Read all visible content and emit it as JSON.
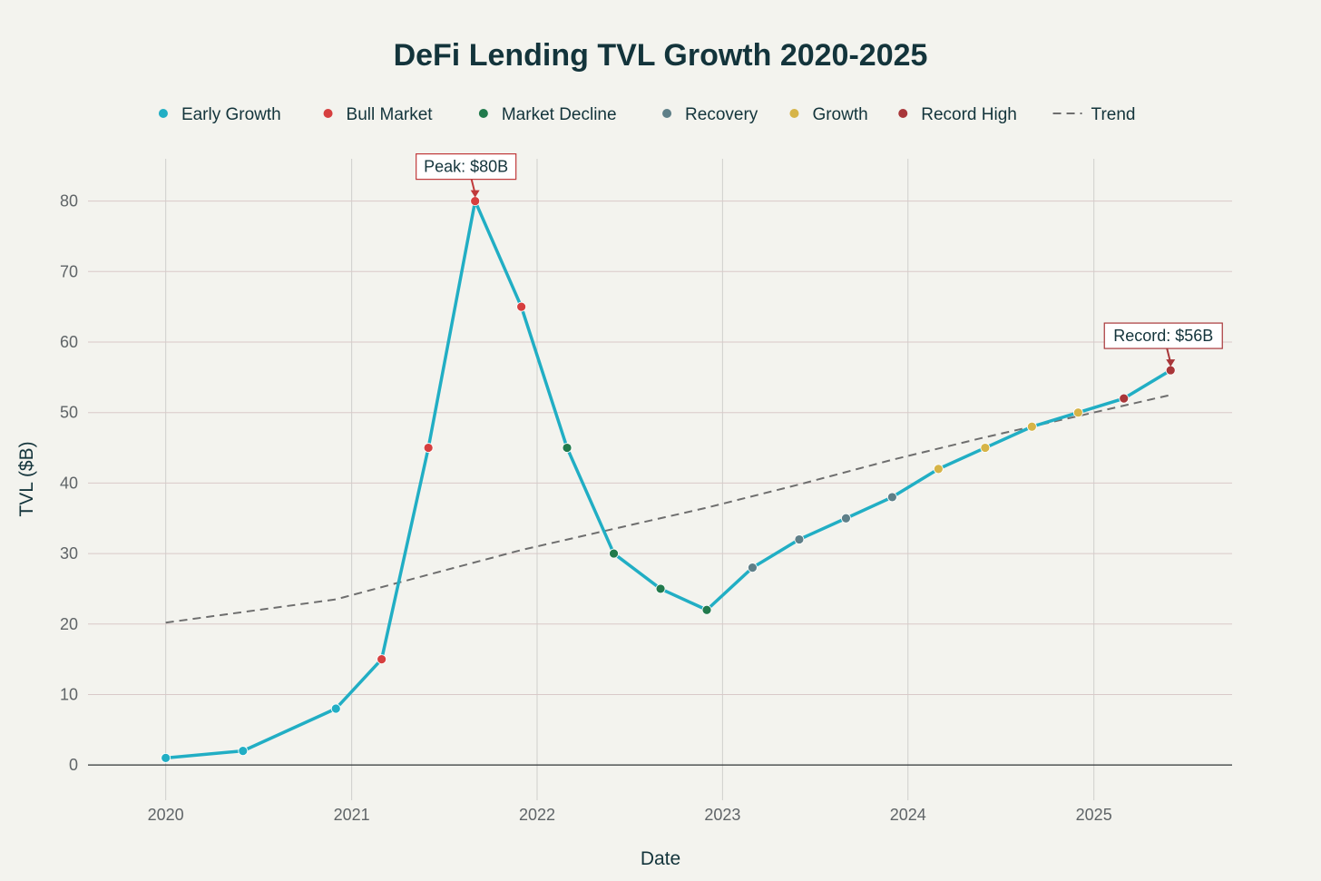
{
  "chart_data": {
    "type": "line",
    "title": "DeFi Lending TVL Growth 2020-2025",
    "xlabel": "Date",
    "ylabel": "TVL ($B)",
    "x_ticks": [
      "2020",
      "2021",
      "2022",
      "2023",
      "2024",
      "2025"
    ],
    "y_ticks": [
      "0",
      "10",
      "20",
      "30",
      "40",
      "50",
      "60",
      "70",
      "80"
    ],
    "xlim": [
      "2019-08-01",
      "2025-09-30"
    ],
    "ylim": [
      -5,
      86
    ],
    "grid": true,
    "legend_position": "top",
    "line_color": "#21aec4",
    "series": [
      {
        "name": "Early Growth",
        "color": "#21aec4",
        "points": [
          [
            "2020-01-01",
            1
          ],
          [
            "2020-06-01",
            2
          ],
          [
            "2020-12-01",
            8
          ]
        ]
      },
      {
        "name": "Bull Market",
        "color": "#d63f3f",
        "points": [
          [
            "2021-03-01",
            15
          ],
          [
            "2021-06-01",
            45
          ],
          [
            "2021-09-01",
            80
          ],
          [
            "2021-12-01",
            65
          ]
        ]
      },
      {
        "name": "Market Decline",
        "color": "#217a4c",
        "points": [
          [
            "2022-03-01",
            45
          ],
          [
            "2022-06-01",
            30
          ],
          [
            "2022-09-01",
            25
          ],
          [
            "2022-12-01",
            22
          ]
        ]
      },
      {
        "name": "Recovery",
        "color": "#5e7f88",
        "points": [
          [
            "2023-03-01",
            28
          ],
          [
            "2023-06-01",
            32
          ],
          [
            "2023-09-01",
            35
          ],
          [
            "2023-12-01",
            38
          ]
        ]
      },
      {
        "name": "Growth",
        "color": "#d6b447",
        "points": [
          [
            "2024-03-01",
            42
          ],
          [
            "2024-06-01",
            45
          ],
          [
            "2024-09-01",
            48
          ],
          [
            "2024-12-01",
            50
          ]
        ]
      },
      {
        "name": "Record High",
        "color": "#a83639",
        "points": [
          [
            "2025-03-01",
            52
          ],
          [
            "2025-06-01",
            56
          ]
        ]
      }
    ],
    "trend": {
      "name": "Trend",
      "color": "#6e6e6e",
      "points": [
        [
          "2020-01-01",
          20.2
        ],
        [
          "2020-12-01",
          23.5
        ],
        [
          "2021-06-01",
          27
        ],
        [
          "2021-12-01",
          30.5
        ],
        [
          "2022-06-01",
          33.5
        ],
        [
          "2022-12-01",
          36.5
        ],
        [
          "2023-06-01",
          39.8
        ],
        [
          "2023-12-01",
          43.3
        ],
        [
          "2024-06-01",
          46.5
        ],
        [
          "2024-12-01",
          49.5
        ],
        [
          "2025-06-01",
          52.5
        ]
      ]
    },
    "annotations": [
      {
        "text": "Peak: $80B",
        "x": "2021-09-01",
        "y": 80,
        "color": "#c0393a"
      },
      {
        "text": "Record: $56B",
        "x": "2025-06-01",
        "y": 56,
        "color": "#a83639"
      }
    ]
  }
}
